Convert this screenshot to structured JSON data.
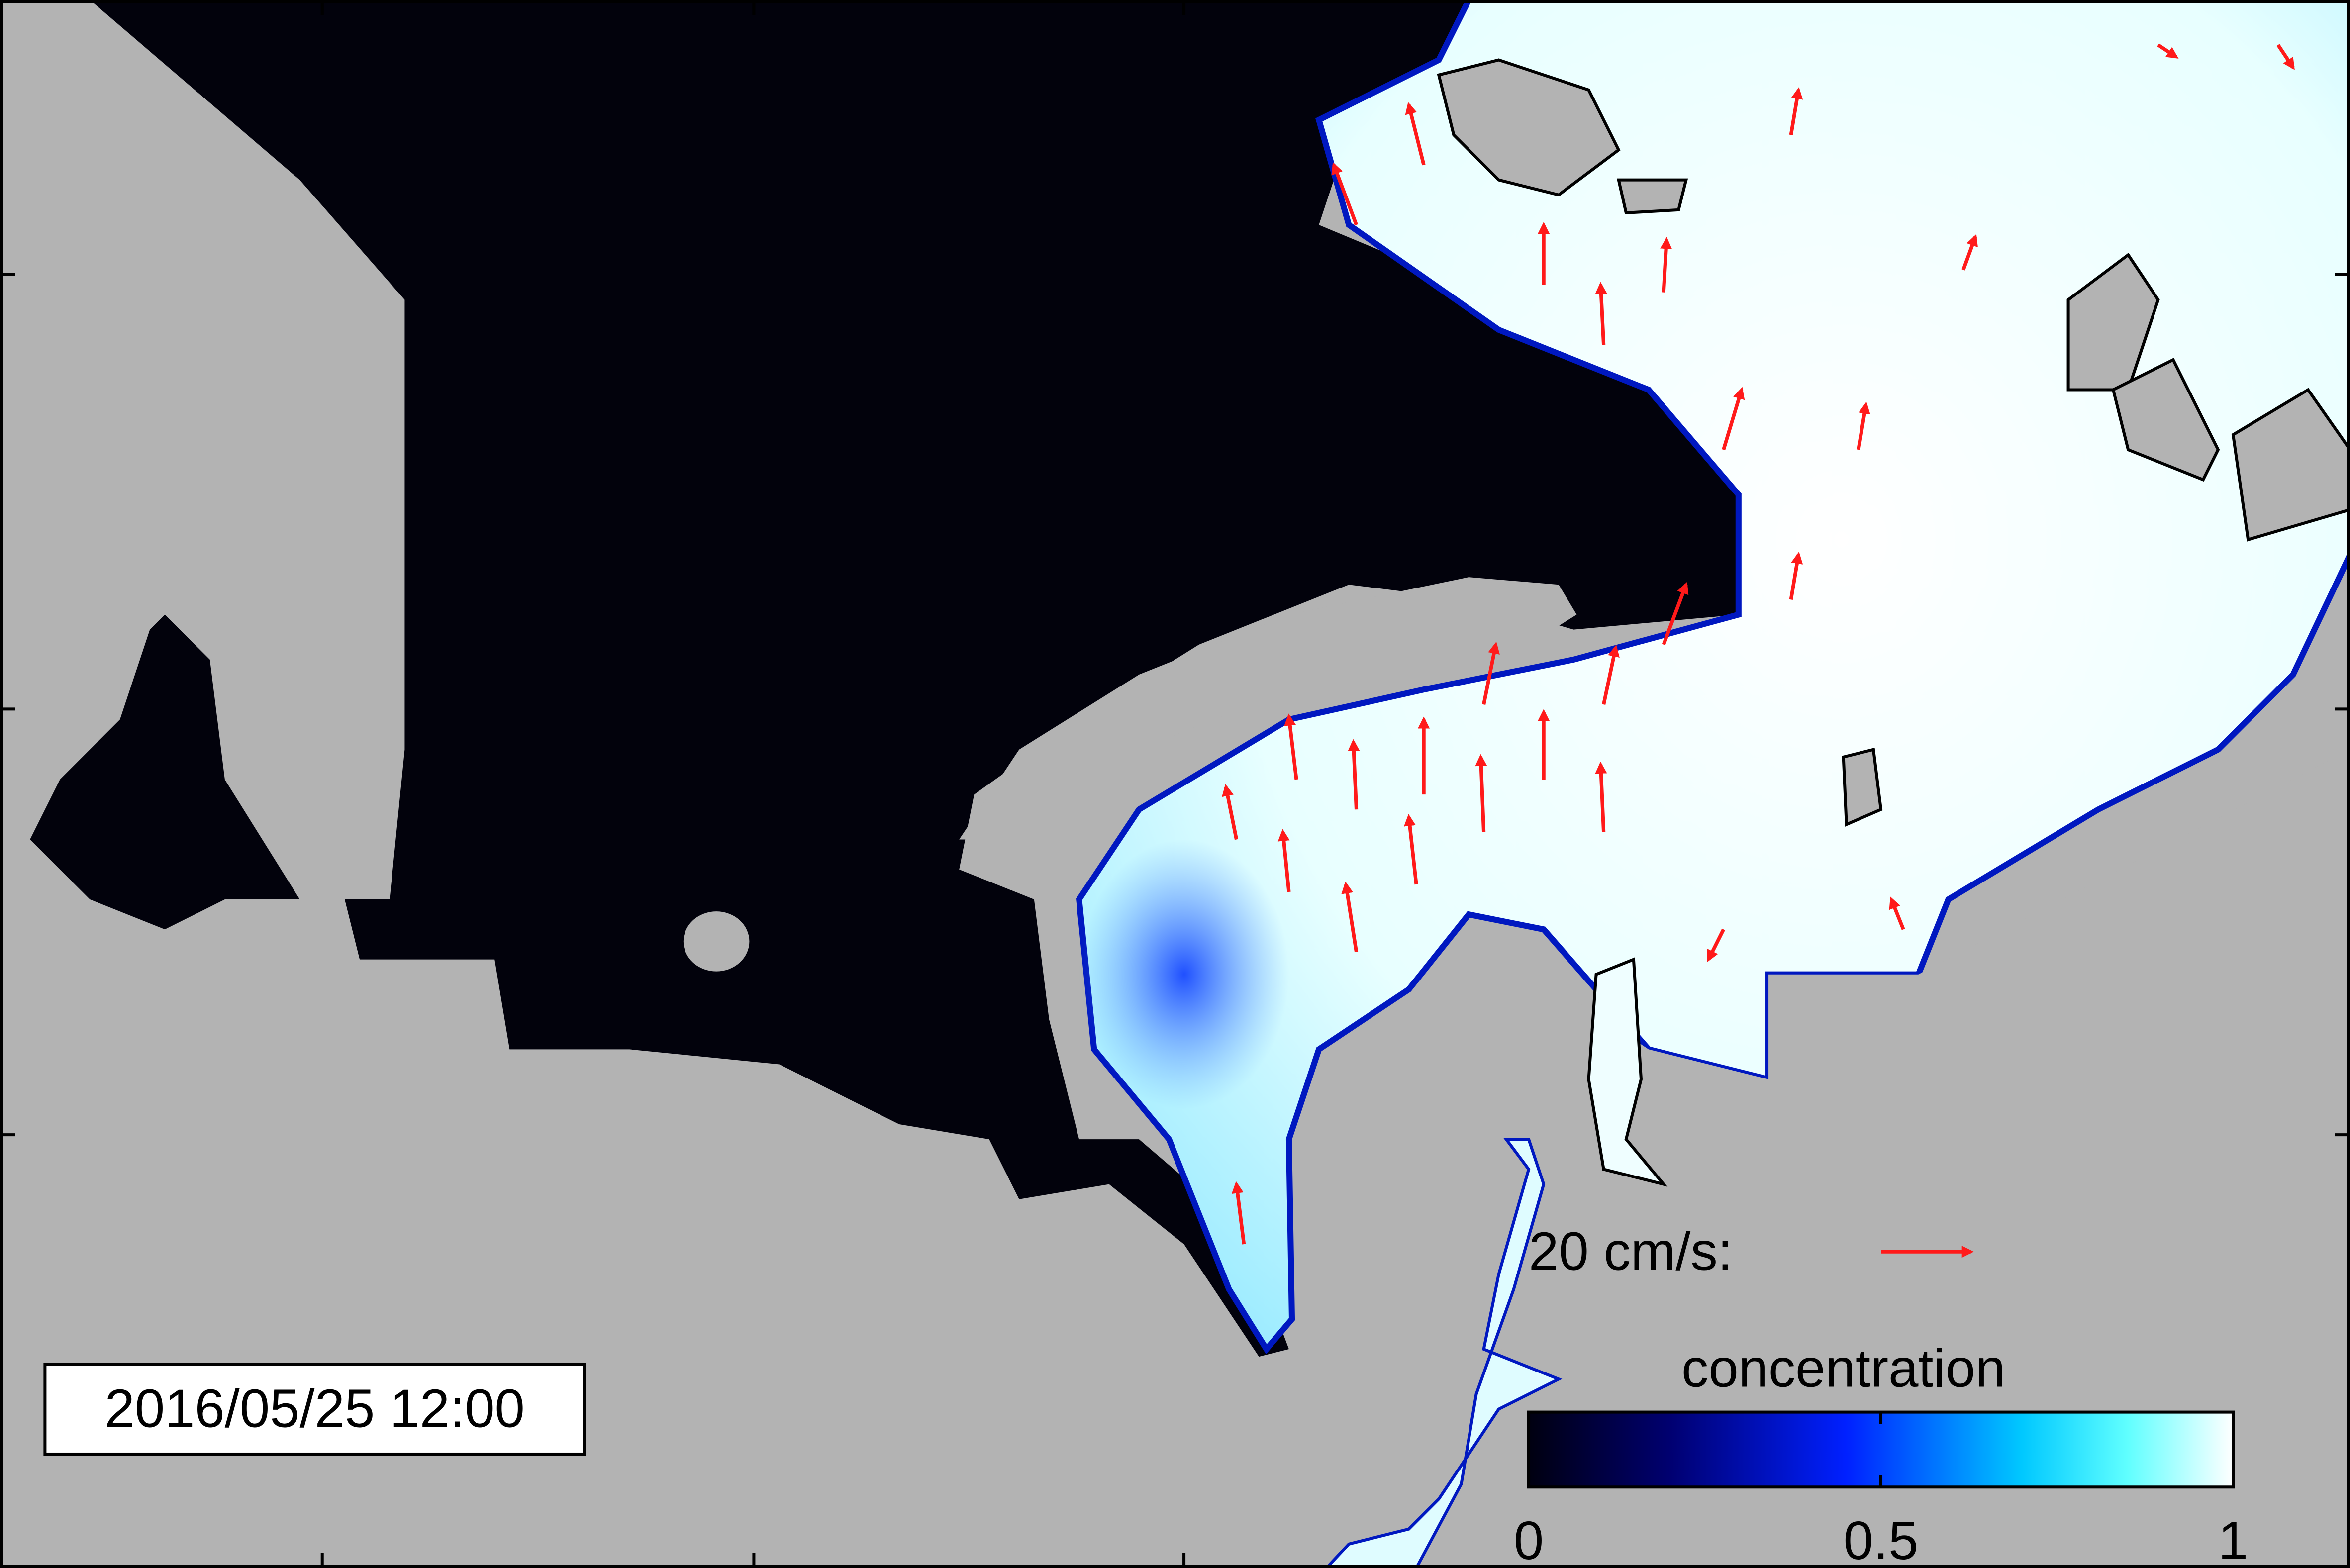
{
  "timestamp": "2016/05/25 12:00",
  "reference_vector": {
    "label": "20 cm/s:"
  },
  "colorbar": {
    "title": "concentration",
    "lim": [
      0,
      1
    ],
    "ticks": [
      0,
      0.5,
      1
    ]
  }
}
